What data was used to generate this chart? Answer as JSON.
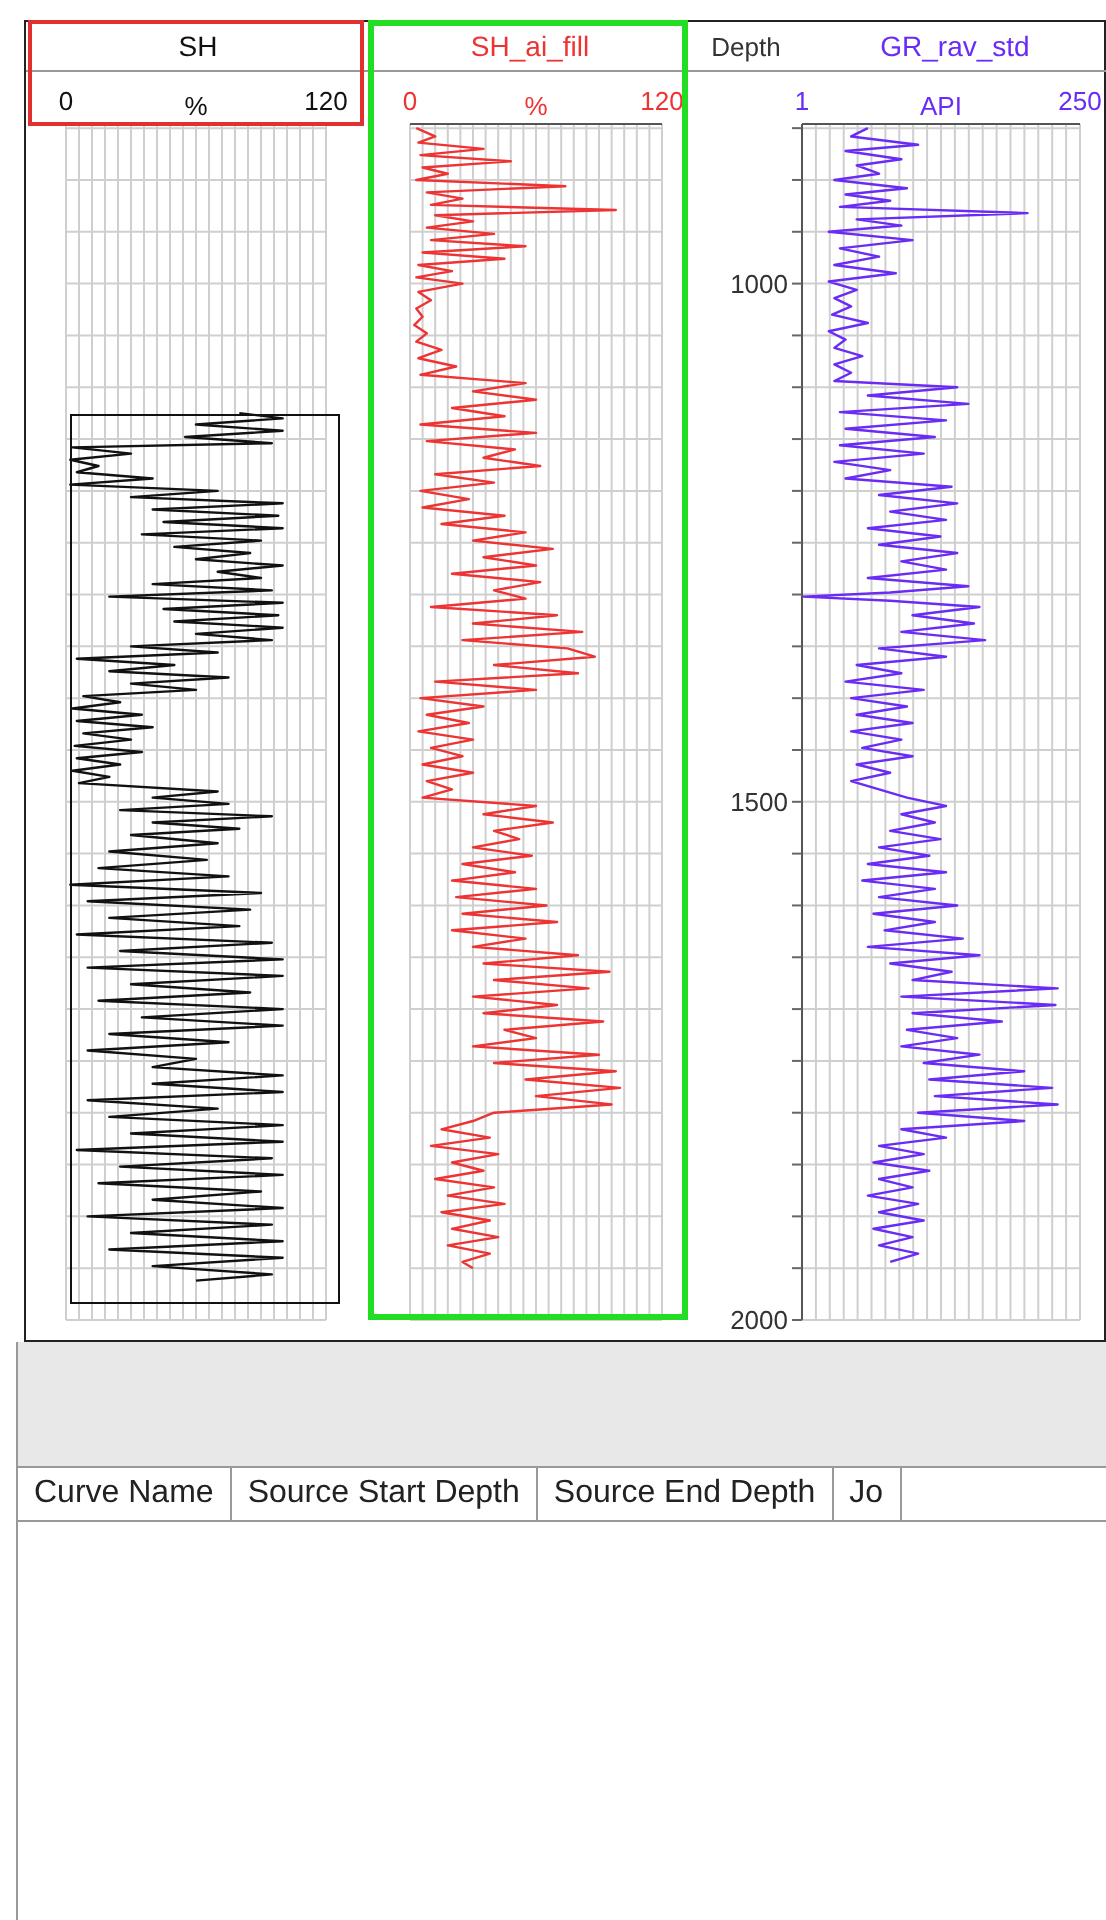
{
  "chart_data": [
    {
      "type": "line",
      "title": "SH",
      "xlabel": "%",
      "color": "#111111",
      "tick_labels": "x",
      "grid": true,
      "xlim": [
        0,
        120
      ],
      "ylim": [
        2000,
        846
      ],
      "xticks": [
        0,
        {
          "value": 6,
          "label": null
        },
        {
          "value": 12,
          "label": null
        },
        {
          "value": 18,
          "label": null
        },
        {
          "value": 24,
          "label": null
        },
        {
          "value": 30,
          "label": null
        },
        {
          "value": 36,
          "label": null
        },
        {
          "value": 42,
          "label": null
        },
        {
          "value": 48,
          "label": null
        },
        {
          "value": 54,
          "label": null
        },
        {
          "value": 60,
          "label": null
        },
        {
          "value": 66,
          "label": null
        },
        {
          "value": 72,
          "label": null
        },
        {
          "value": 78,
          "label": null
        },
        {
          "value": 84,
          "label": null
        },
        {
          "value": 90,
          "label": null
        },
        {
          "value": 96,
          "label": null
        },
        {
          "value": 102,
          "label": null
        },
        {
          "value": 108,
          "label": null
        },
        {
          "value": 114,
          "label": null
        },
        120
      ],
      "yticks": [
        {
          "value": 850,
          "label": null
        },
        {
          "value": 900,
          "label": null
        },
        {
          "value": 950,
          "label": null
        },
        {
          "value": 1000,
          "label": null
        },
        {
          "value": 1050,
          "label": null
        },
        {
          "value": 1100,
          "label": null
        },
        {
          "value": 1150,
          "label": null
        },
        {
          "value": 1200,
          "label": null
        },
        {
          "value": 1250,
          "label": null
        },
        {
          "value": 1300,
          "label": null
        },
        {
          "value": 1350,
          "label": null
        },
        {
          "value": 1400,
          "label": null
        },
        {
          "value": 1450,
          "label": null
        },
        {
          "value": 1500,
          "label": null
        },
        {
          "value": 1550,
          "label": null
        },
        {
          "value": 1600,
          "label": null
        },
        {
          "value": 1650,
          "label": null
        },
        {
          "value": 1700,
          "label": null
        },
        {
          "value": 1750,
          "label": null
        },
        {
          "value": 1800,
          "label": null
        },
        {
          "value": 1850,
          "label": null
        },
        {
          "value": 1900,
          "label": null
        },
        {
          "value": 1950,
          "label": null
        },
        {
          "value": 2000,
          "label": null
        }
      ],
      "x": [
        80,
        100,
        60,
        100,
        55,
        95,
        3,
        30,
        2,
        15,
        5,
        40,
        2,
        70,
        30,
        100,
        40,
        98,
        45,
        100,
        35,
        90,
        50,
        85,
        60,
        100,
        70,
        90,
        40,
        95,
        20,
        100,
        45,
        98,
        50,
        100,
        60,
        95,
        30,
        70,
        5,
        50,
        20,
        75,
        30,
        60,
        8,
        25,
        3,
        35,
        5,
        40,
        8,
        30,
        4,
        35,
        5,
        25,
        3,
        20,
        6,
        70,
        40,
        75,
        25,
        95,
        40,
        80,
        30,
        70,
        20,
        65,
        15,
        75,
        2,
        90,
        10,
        85,
        20,
        80,
        5,
        95,
        25,
        100,
        10,
        100,
        30,
        85,
        15,
        100,
        35,
        100,
        20,
        75,
        10,
        60,
        40,
        100,
        40,
        100,
        10,
        70,
        20,
        100,
        30,
        100,
        5,
        95,
        25,
        100,
        15,
        90,
        40,
        100,
        10,
        95,
        30,
        100,
        20,
        100,
        40,
        95,
        60
      ],
      "values": [
        1125,
        1130,
        1136,
        1142,
        1148,
        1154,
        1158,
        1164,
        1170,
        1176,
        1182,
        1188,
        1194,
        1200,
        1206,
        1212,
        1218,
        1224,
        1230,
        1236,
        1242,
        1248,
        1254,
        1260,
        1266,
        1272,
        1278,
        1284,
        1290,
        1296,
        1302,
        1308,
        1314,
        1320,
        1326,
        1332,
        1338,
        1344,
        1350,
        1356,
        1362,
        1368,
        1374,
        1380,
        1386,
        1392,
        1398,
        1404,
        1410,
        1416,
        1422,
        1428,
        1434,
        1440,
        1446,
        1452,
        1458,
        1464,
        1470,
        1476,
        1482,
        1490,
        1496,
        1502,
        1508,
        1514,
        1520,
        1526,
        1532,
        1540,
        1548,
        1556,
        1564,
        1572,
        1580,
        1588,
        1596,
        1604,
        1612,
        1620,
        1628,
        1636,
        1644,
        1652,
        1660,
        1668,
        1676,
        1684,
        1692,
        1700,
        1708,
        1716,
        1724,
        1732,
        1740,
        1748,
        1756,
        1764,
        1772,
        1780,
        1788,
        1796,
        1804,
        1812,
        1820,
        1828,
        1836,
        1844,
        1852,
        1860,
        1868,
        1876,
        1884,
        1892,
        1900,
        1908,
        1916,
        1924,
        1932,
        1940,
        1948,
        1956,
        1962
      ]
    },
    {
      "type": "line",
      "title": "SH_ai_fill",
      "xlabel": "%",
      "color": "#ee3333",
      "tick_labels": "x",
      "grid": true,
      "xlim": [
        0,
        120
      ],
      "ylim": [
        2000,
        846
      ],
      "xticks": [
        0,
        {
          "value": 6,
          "label": null
        },
        {
          "value": 12,
          "label": null
        },
        {
          "value": 18,
          "label": null
        },
        {
          "value": 24,
          "label": null
        },
        {
          "value": 30,
          "label": null
        },
        {
          "value": 36,
          "label": null
        },
        {
          "value": 42,
          "label": null
        },
        {
          "value": 48,
          "label": null
        },
        {
          "value": 54,
          "label": null
        },
        {
          "value": 60,
          "label": null
        },
        {
          "value": 66,
          "label": null
        },
        {
          "value": 72,
          "label": null
        },
        {
          "value": 78,
          "label": null
        },
        {
          "value": 84,
          "label": null
        },
        {
          "value": 90,
          "label": null
        },
        {
          "value": 96,
          "label": null
        },
        {
          "value": 102,
          "label": null
        },
        {
          "value": 108,
          "label": null
        },
        {
          "value": 114,
          "label": null
        },
        120
      ],
      "yticks": [
        {
          "value": 850,
          "label": null
        },
        {
          "value": 900,
          "label": null
        },
        {
          "value": 950,
          "label": null
        },
        {
          "value": 1000,
          "label": null
        },
        {
          "value": 1050,
          "label": null
        },
        {
          "value": 1100,
          "label": null
        },
        {
          "value": 1150,
          "label": null
        },
        {
          "value": 1200,
          "label": null
        },
        {
          "value": 1250,
          "label": null
        },
        {
          "value": 1300,
          "label": null
        },
        {
          "value": 1350,
          "label": null
        },
        {
          "value": 1400,
          "label": null
        },
        {
          "value": 1450,
          "label": null
        },
        {
          "value": 1500,
          "label": null
        },
        {
          "value": 1550,
          "label": null
        },
        {
          "value": 1600,
          "label": null
        },
        {
          "value": 1650,
          "label": null
        },
        {
          "value": 1700,
          "label": null
        },
        {
          "value": 1750,
          "label": null
        },
        {
          "value": 1800,
          "label": null
        },
        {
          "value": 1850,
          "label": null
        },
        {
          "value": 1900,
          "label": null
        },
        {
          "value": 1950,
          "label": null
        },
        {
          "value": 2000,
          "label": null
        }
      ],
      "x": [
        3,
        12,
        4,
        35,
        5,
        48,
        6,
        18,
        3,
        74,
        8,
        25,
        10,
        98,
        12,
        30,
        8,
        40,
        10,
        55,
        6,
        45,
        4,
        20,
        3,
        25,
        4,
        10,
        3,
        6,
        2,
        8,
        3,
        15,
        4,
        22,
        5,
        55,
        30,
        60,
        20,
        45,
        5,
        60,
        8,
        50,
        35,
        62,
        12,
        40,
        5,
        28,
        6,
        45,
        15,
        55,
        30,
        68,
        35,
        60,
        20,
        62,
        40,
        55,
        10,
        70,
        30,
        82,
        25,
        75,
        88,
        40,
        80,
        12,
        60,
        5,
        35,
        8,
        28,
        4,
        30,
        10,
        25,
        6,
        30,
        8,
        20,
        6,
        60,
        35,
        68,
        40,
        52,
        30,
        58,
        25,
        50,
        20,
        60,
        22,
        65,
        25,
        70,
        20,
        55,
        30,
        80,
        35,
        95,
        40,
        85,
        30,
        70,
        35,
        92,
        45,
        60,
        30,
        90,
        40,
        98,
        55,
        100,
        60,
        96,
        40,
        30,
        15,
        38,
        10,
        42,
        20,
        35,
        12,
        40,
        18,
        45,
        15,
        38,
        20,
        42,
        18,
        38,
        25,
        30
      ],
      "values": [
        850,
        858,
        864,
        870,
        876,
        882,
        888,
        894,
        900,
        906,
        912,
        918,
        924,
        929,
        934,
        940,
        946,
        952,
        958,
        964,
        970,
        976,
        982,
        988,
        994,
        1000,
        1008,
        1016,
        1024,
        1032,
        1040,
        1048,
        1056,
        1064,
        1072,
        1080,
        1088,
        1096,
        1104,
        1112,
        1120,
        1128,
        1136,
        1144,
        1152,
        1160,
        1168,
        1176,
        1184,
        1192,
        1200,
        1208,
        1216,
        1224,
        1232,
        1240,
        1248,
        1256,
        1264,
        1272,
        1280,
        1288,
        1296,
        1304,
        1312,
        1320,
        1328,
        1336,
        1344,
        1352,
        1360,
        1368,
        1376,
        1384,
        1392,
        1400,
        1408,
        1416,
        1424,
        1432,
        1440,
        1448,
        1456,
        1464,
        1472,
        1480,
        1488,
        1496,
        1504,
        1512,
        1520,
        1528,
        1536,
        1544,
        1552,
        1560,
        1568,
        1576,
        1584,
        1592,
        1600,
        1608,
        1616,
        1624,
        1632,
        1640,
        1648,
        1656,
        1664,
        1672,
        1680,
        1688,
        1696,
        1704,
        1712,
        1720,
        1728,
        1736,
        1744,
        1752,
        1760,
        1768,
        1776,
        1784,
        1792,
        1800,
        1808,
        1816,
        1824,
        1832,
        1840,
        1848,
        1856,
        1864,
        1872,
        1880,
        1888,
        1896,
        1904,
        1912,
        1920,
        1928,
        1936,
        1944,
        1950
      ]
    },
    {
      "type": "line",
      "title": "GR_rav_std",
      "xlabel": "API",
      "ylabel": "Depth",
      "color": "#6a2cf5",
      "grid": true,
      "xlim": [
        1,
        250
      ],
      "ylim": [
        2000,
        846
      ],
      "xticks": [
        1,
        {
          "value": 13.45,
          "label": null
        },
        {
          "value": 25.9,
          "label": null
        },
        {
          "value": 38.35,
          "label": null
        },
        {
          "value": 50.8,
          "label": null
        },
        {
          "value": 63.25,
          "label": null
        },
        {
          "value": 75.7,
          "label": null
        },
        {
          "value": 88.15,
          "label": null
        },
        {
          "value": 100.6,
          "label": null
        },
        {
          "value": 113.05,
          "label": null
        },
        {
          "value": 125.5,
          "label": null
        },
        {
          "value": 137.95,
          "label": null
        },
        {
          "value": 150.4,
          "label": null
        },
        {
          "value": 162.85,
          "label": null
        },
        {
          "value": 175.3,
          "label": null
        },
        {
          "value": 187.75,
          "label": null
        },
        {
          "value": 200.2,
          "label": null
        },
        {
          "value": 212.65,
          "label": null
        },
        {
          "value": 225.1,
          "label": null
        },
        {
          "value": 237.55,
          "label": null
        },
        250
      ],
      "yticks": [
        {
          "value": 850,
          "label": null
        },
        {
          "value": 900,
          "label": null
        },
        {
          "value": 950,
          "label": null
        },
        {
          "value": 1000,
          "label": "1000"
        },
        {
          "value": 1050,
          "label": null
        },
        {
          "value": 1100,
          "label": null
        },
        {
          "value": 1150,
          "label": null
        },
        {
          "value": 1200,
          "label": null
        },
        {
          "value": 1250,
          "label": null
        },
        {
          "value": 1300,
          "label": null
        },
        {
          "value": 1350,
          "label": null
        },
        {
          "value": 1400,
          "label": null
        },
        {
          "value": 1450,
          "label": null
        },
        {
          "value": 1500,
          "label": "1500"
        },
        {
          "value": 1550,
          "label": null
        },
        {
          "value": 1600,
          "label": null
        },
        {
          "value": 1650,
          "label": null
        },
        {
          "value": 1700,
          "label": null
        },
        {
          "value": 1750,
          "label": null
        },
        {
          "value": 1800,
          "label": null
        },
        {
          "value": 1850,
          "label": null
        },
        {
          "value": 1900,
          "label": null
        },
        {
          "value": 1950,
          "label": null
        },
        {
          "value": 2000,
          "label": "2000"
        }
      ],
      "x": [
        60,
        45,
        105,
        40,
        90,
        50,
        70,
        30,
        95,
        40,
        80,
        35,
        203,
        50,
        90,
        25,
        100,
        35,
        70,
        30,
        85,
        25,
        50,
        30,
        45,
        28,
        60,
        25,
        40,
        30,
        55,
        30,
        45,
        30,
        140,
        60,
        150,
        35,
        130,
        40,
        120,
        35,
        110,
        30,
        80,
        40,
        135,
        70,
        140,
        80,
        130,
        60,
        125,
        70,
        140,
        90,
        130,
        60,
        150,
        80,
        2,
        80,
        160,
        100,
        155,
        90,
        165,
        70,
        130,
        50,
        90,
        40,
        110,
        45,
        95,
        50,
        100,
        45,
        90,
        55,
        100,
        50,
        80,
        45,
        70,
        95,
        130,
        90,
        120,
        80,
        125,
        70,
        115,
        60,
        130,
        55,
        120,
        70,
        140,
        65,
        120,
        75,
        145,
        60,
        160,
        80,
        135,
        100,
        230,
        90,
        228,
        100,
        180,
        95,
        140,
        90,
        160,
        110,
        200,
        115,
        225,
        120,
        230,
        105,
        200,
        90,
        130,
        70,
        110,
        65,
        115,
        70,
        100,
        60,
        105,
        70,
        110,
        65,
        100,
        70,
        105,
        80
      ],
      "values": [
        850,
        858,
        866,
        872,
        880,
        886,
        894,
        900,
        908,
        914,
        920,
        926,
        932,
        938,
        944,
        950,
        958,
        966,
        974,
        982,
        990,
        998,
        1006,
        1014,
        1022,
        1030,
        1038,
        1046,
        1054,
        1062,
        1070,
        1078,
        1086,
        1094,
        1100,
        1108,
        1116,
        1124,
        1132,
        1140,
        1148,
        1156,
        1164,
        1172,
        1180,
        1188,
        1196,
        1204,
        1212,
        1220,
        1228,
        1236,
        1244,
        1252,
        1260,
        1268,
        1276,
        1284,
        1292,
        1298,
        1302,
        1306,
        1312,
        1320,
        1328,
        1336,
        1344,
        1352,
        1360,
        1368,
        1376,
        1384,
        1392,
        1400,
        1408,
        1416,
        1424,
        1432,
        1440,
        1448,
        1456,
        1464,
        1472,
        1480,
        1488,
        1496,
        1504,
        1512,
        1520,
        1528,
        1536,
        1544,
        1552,
        1560,
        1568,
        1576,
        1584,
        1592,
        1600,
        1608,
        1616,
        1624,
        1632,
        1640,
        1648,
        1656,
        1664,
        1672,
        1680,
        1688,
        1696,
        1704,
        1712,
        1720,
        1728,
        1736,
        1744,
        1752,
        1760,
        1768,
        1776,
        1784,
        1792,
        1800,
        1808,
        1816,
        1824,
        1832,
        1840,
        1848,
        1856,
        1864,
        1872,
        1880,
        1888,
        1896,
        1904,
        1912,
        1920,
        1928,
        1936,
        1944
      ],
      "annotations": [
        "Curve Name",
        "Source Start Depth",
        "Source End Depth",
        "Jo"
      ]
    }
  ]
}
